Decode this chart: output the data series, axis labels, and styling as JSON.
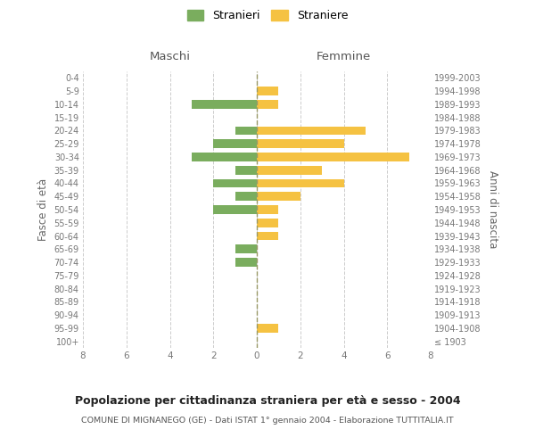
{
  "age_groups": [
    "100+",
    "95-99",
    "90-94",
    "85-89",
    "80-84",
    "75-79",
    "70-74",
    "65-69",
    "60-64",
    "55-59",
    "50-54",
    "45-49",
    "40-44",
    "35-39",
    "30-34",
    "25-29",
    "20-24",
    "15-19",
    "10-14",
    "5-9",
    "0-4"
  ],
  "birth_years": [
    "≤ 1903",
    "1904-1908",
    "1909-1913",
    "1914-1918",
    "1919-1923",
    "1924-1928",
    "1929-1933",
    "1934-1938",
    "1939-1943",
    "1944-1948",
    "1949-1953",
    "1954-1958",
    "1959-1963",
    "1964-1968",
    "1969-1973",
    "1974-1978",
    "1979-1983",
    "1984-1988",
    "1989-1993",
    "1994-1998",
    "1999-2003"
  ],
  "maschi": [
    0,
    0,
    0,
    0,
    0,
    0,
    1,
    1,
    0,
    0,
    2,
    1,
    2,
    1,
    3,
    2,
    1,
    0,
    3,
    0,
    0
  ],
  "femmine": [
    0,
    1,
    0,
    0,
    0,
    0,
    0,
    0,
    1,
    1,
    1,
    2,
    4,
    3,
    7,
    4,
    5,
    0,
    1,
    1,
    0
  ],
  "color_maschi": "#7aad5e",
  "color_femmine": "#f5c242",
  "title_main": "Popolazione per cittadinanza straniera per età e sesso - 2004",
  "title_sub": "COMUNE DI MIGNANEGO (GE) - Dati ISTAT 1° gennaio 2004 - Elaborazione TUTTITALIA.IT",
  "label_maschi": "Stranieri",
  "label_femmine": "Straniere",
  "xlabel_left": "Maschi",
  "xlabel_right": "Femmine",
  "ylabel_left": "Fasce di età",
  "ylabel_right": "Anni di nascita",
  "xlim": 8,
  "background_color": "#ffffff",
  "grid_color": "#cccccc"
}
